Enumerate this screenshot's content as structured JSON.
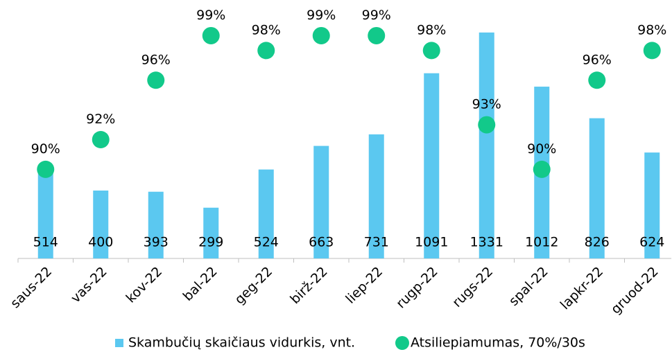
{
  "chart_data": {
    "type": "bar",
    "categories": [
      "saus-22",
      "vas-22",
      "kov-22",
      "bal-22",
      "geg-22",
      "birž-22",
      "liep-22",
      "rugp-22",
      "rugs-22",
      "spal-22",
      "lapkr-22",
      "gruod-22"
    ],
    "series": [
      {
        "name": "Skambučių skaičiaus vidurkis, vnt.",
        "color": "#5bc8f0",
        "type": "bar",
        "values": [
          514,
          400,
          393,
          299,
          524,
          663,
          731,
          1091,
          1331,
          1012,
          826,
          624
        ]
      },
      {
        "name": "Atsiliepiamumas, 70%/30s",
        "color": "#12c98a",
        "type": "scatter",
        "axis": "y2",
        "values": [
          90,
          92,
          96,
          99,
          98,
          99,
          99,
          98,
          93,
          90,
          96,
          98
        ],
        "value_labels": [
          "90%",
          "92%",
          "96%",
          "99%",
          "98%",
          "99%",
          "99%",
          "98%",
          "93%",
          "90%",
          "96%",
          "98%"
        ]
      }
    ],
    "ylim": [
      0,
      1400
    ],
    "y2lim": [
      84,
      100
    ],
    "legend": "bottom"
  }
}
